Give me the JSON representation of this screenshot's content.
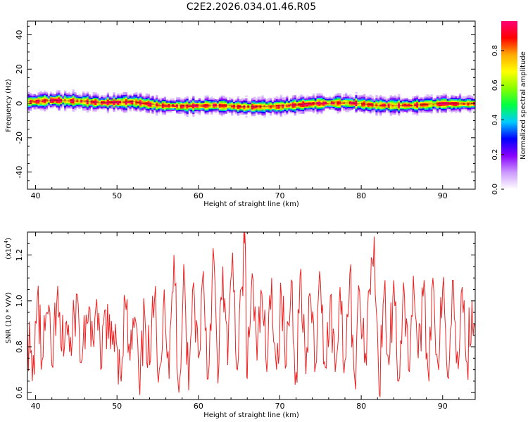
{
  "title": "C2E2.2026.034.01.46.R05",
  "chart_data": [
    {
      "type": "heatmap",
      "panel": "top",
      "xlabel": "Height of straight line (km)",
      "ylabel": "Frequency (Hz)",
      "xlim": [
        39,
        94
      ],
      "ylim": [
        -50,
        48
      ],
      "x_ticks": [
        40,
        50,
        60,
        70,
        80,
        90
      ],
      "y_ticks": [
        40,
        20,
        0,
        -20,
        -40
      ],
      "grid": false,
      "description_of_data": "narrow band of high normalized amplitude centered near 0 Hz, about ±5 Hz wide, across all heights",
      "band_center_hz": [
        [
          39,
          1
        ],
        [
          42,
          2
        ],
        [
          45,
          1.5
        ],
        [
          48,
          0.5
        ],
        [
          52,
          1
        ],
        [
          55,
          -1
        ],
        [
          58,
          -1.5
        ],
        [
          62,
          -1
        ],
        [
          66,
          -2
        ],
        [
          70,
          -1.5
        ],
        [
          74,
          0
        ],
        [
          78,
          0.5
        ],
        [
          82,
          -1
        ],
        [
          86,
          -1
        ],
        [
          90,
          0
        ],
        [
          94,
          0
        ]
      ],
      "colorbar": {
        "label": "Normalized spectral amplitude",
        "range": [
          0.0,
          0.97
        ],
        "ticks": [
          "0.0",
          "0.2",
          "0.4",
          "0.6",
          "0.8"
        ],
        "colors": [
          "#ffffff",
          "#cc99ff",
          "#8800ff",
          "#0000ff",
          "#00ccff",
          "#00ff44",
          "#88ff00",
          "#ffff00",
          "#ffaa00",
          "#ff0000",
          "#ff0077"
        ]
      }
    },
    {
      "type": "line",
      "panel": "bottom",
      "xlabel": "Height of straight line (km)",
      "ylabel": "SNR (10 * V/V)",
      "y_multiplier": "(x10",
      "y_multiplier_exp": "4",
      "y_multiplier_close": ")",
      "xlim": [
        39,
        94
      ],
      "ylim": [
        0.57,
        1.3
      ],
      "x_ticks": [
        40,
        50,
        60,
        70,
        80,
        90
      ],
      "y_ticks": [
        "0.6",
        "0.8",
        "1.0",
        "1.2"
      ],
      "grid": false,
      "series": [
        {
          "color": "#ee2222",
          "x": [
            39.0,
            39.6,
            40.2,
            40.8,
            41.4,
            42.0,
            42.6,
            43.2,
            43.8,
            44.4,
            45.0,
            45.6,
            46.2,
            46.8,
            47.4,
            48.0,
            48.6,
            49.2,
            49.8,
            50.4,
            51.0,
            51.6,
            52.2,
            52.8,
            53.4,
            54.0,
            54.6,
            55.2,
            55.8,
            56.4,
            57.0,
            57.6,
            58.2,
            58.8,
            59.4,
            60.0,
            60.6,
            61.2,
            61.8,
            62.4,
            63.0,
            63.6,
            64.2,
            64.8,
            65.4,
            65.7,
            66.0,
            66.6,
            67.2,
            67.8,
            68.4,
            69.0,
            69.6,
            70.2,
            70.8,
            71.4,
            72.0,
            72.6,
            73.2,
            73.8,
            74.4,
            75.0,
            75.6,
            76.2,
            76.8,
            77.4,
            78.0,
            78.6,
            79.2,
            79.8,
            80.4,
            81.0,
            81.6,
            82.2,
            82.8,
            83.4,
            84.0,
            84.6,
            85.2,
            85.8,
            86.4,
            87.0,
            87.6,
            88.2,
            88.8,
            89.4,
            90.0,
            90.6,
            91.2,
            91.8,
            92.4,
            93.0,
            93.6,
            94.0
          ],
          "y": [
            0.88,
            0.65,
            1.01,
            0.74,
            0.95,
            0.72,
            0.99,
            0.78,
            0.91,
            0.76,
            1.03,
            0.73,
            0.94,
            0.8,
            0.97,
            0.7,
            0.96,
            0.79,
            0.9,
            0.68,
            1.0,
            0.74,
            0.93,
            0.59,
            0.95,
            0.72,
            1.0,
            0.7,
            1.05,
            0.66,
            1.2,
            0.6,
            1.16,
            0.61,
            1.08,
            0.75,
            1.13,
            0.66,
            1.23,
            0.64,
            1.15,
            0.72,
            1.21,
            0.7,
            1.06,
            1.3,
            0.66,
            1.12,
            0.74,
            1.03,
            0.69,
            1.1,
            0.7,
            1.02,
            0.72,
            1.09,
            0.69,
            1.14,
            0.68,
            1.01,
            0.72,
            1.08,
            0.71,
            1.02,
            0.69,
            1.06,
            0.74,
            1.12,
            0.66,
            1.04,
            0.73,
            1.05,
            1.28,
            0.6,
            1.03,
            0.72,
            1.09,
            0.65,
            1.08,
            0.7,
            1.11,
            0.75,
            1.02,
            0.7,
            1.1,
            0.73,
            1.05,
            0.67,
            1.09,
            0.78,
            1.06,
            0.73,
            1.0,
            0.88
          ]
        }
      ]
    }
  ]
}
